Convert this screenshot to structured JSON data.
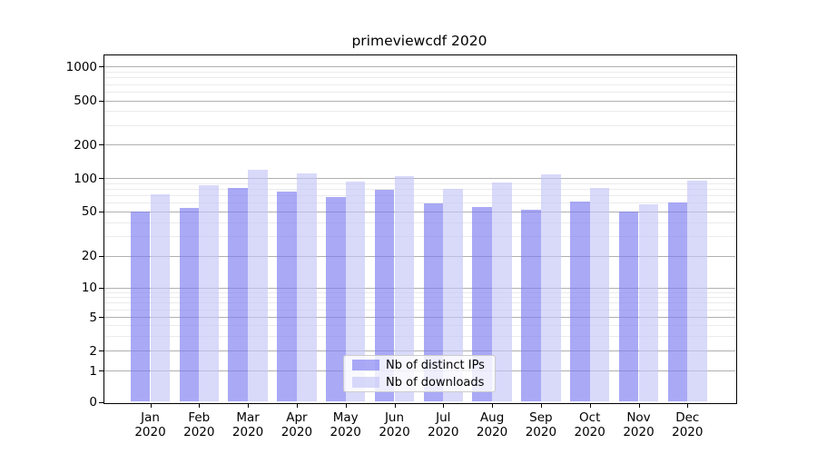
{
  "title": "primeviewcdf 2020",
  "chart_data": {
    "type": "bar",
    "title": "primeviewcdf 2020",
    "categories": [
      "Jan",
      "Feb",
      "Mar",
      "Apr",
      "May",
      "Jun",
      "Jul",
      "Aug",
      "Sep",
      "Oct",
      "Nov",
      "Dec"
    ],
    "category_year_line": "2020",
    "series": [
      {
        "name": "Nb of distinct IPs",
        "color": "rgba(123,123,241,0.65)",
        "solid_color": "#a9a9f6",
        "values": [
          50,
          54,
          81,
          75,
          67,
          78,
          59,
          55,
          52,
          61,
          50,
          60
        ]
      },
      {
        "name": "Nb of downloads",
        "color": "rgba(196,196,247,0.65)",
        "solid_color": "#d9d9fa",
        "values": [
          71,
          86,
          118,
          110,
          92,
          104,
          80,
          91,
          107,
          82,
          58,
          94
        ]
      }
    ],
    "xlabel": "",
    "ylabel": "",
    "y_scale": "symlog",
    "y_ticks": [
      0,
      1,
      2,
      5,
      10,
      20,
      50,
      100,
      200,
      500,
      1000
    ],
    "y_minor_ticks": [
      3,
      4,
      6,
      7,
      8,
      9,
      30,
      40,
      60,
      70,
      80,
      90,
      300,
      400,
      600,
      700,
      800,
      900
    ],
    "ylim": [
      0,
      1300
    ],
    "grid": "on",
    "grid_major_color": "#b0b0b0",
    "grid_minor_color": "#ebebeb",
    "legend_position": "lower center"
  }
}
